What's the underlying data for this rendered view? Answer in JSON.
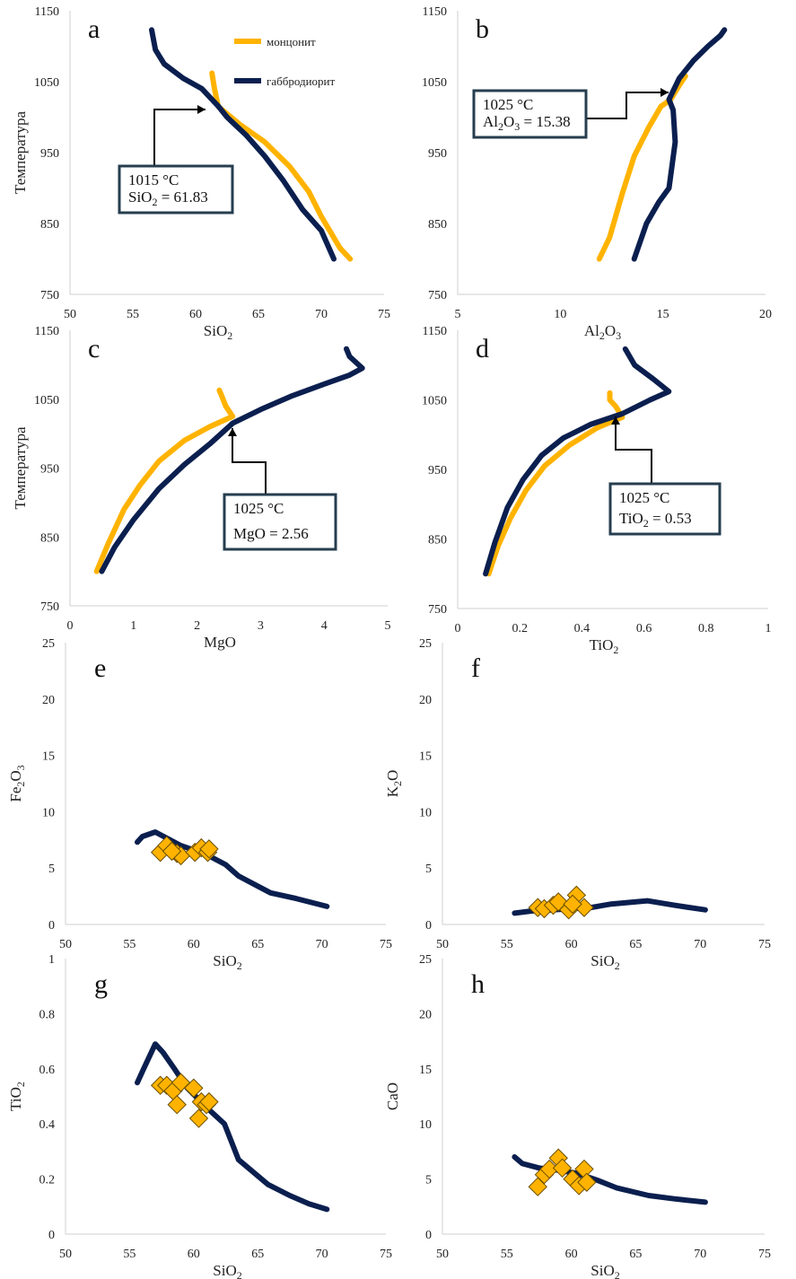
{
  "colors": {
    "monzonite": "#FFB300",
    "gabbrodiorite": "#0B1F4F",
    "marker_edge": "#6B4E00",
    "box_edge": "#263E4F"
  },
  "legend": {
    "monzonite": "монцонит",
    "gabbrodiorite": "габбродиорит"
  },
  "chart_data": [
    {
      "id": "a",
      "type": "line",
      "letter": "a",
      "xlabel": "SiO2",
      "ylabel": "Температура",
      "xlim": [
        50,
        75
      ],
      "ylim": [
        750,
        1150
      ],
      "xticks": [
        50,
        55,
        60,
        65,
        70,
        75
      ],
      "yticks": [
        750,
        850,
        950,
        1050,
        1150
      ],
      "show_legend": true,
      "series": [
        {
          "name": "монцонит",
          "color_key": "monzonite",
          "x": [
            61.3,
            61.5,
            61.8,
            63.5,
            65.5,
            67.5,
            69,
            70,
            71,
            71.5,
            72.3
          ],
          "y": [
            1062,
            1040,
            1015,
            990,
            965,
            930,
            895,
            860,
            830,
            815,
            800
          ]
        },
        {
          "name": "габбродиорит",
          "color_key": "gabbrodiorite",
          "x": [
            56.5,
            56.8,
            57.5,
            59,
            60.5,
            61.83,
            62.5,
            64,
            65.5,
            67,
            68.5,
            70,
            71
          ],
          "y": [
            1123,
            1095,
            1075,
            1055,
            1040,
            1015,
            1000,
            975,
            945,
            910,
            870,
            840,
            800
          ]
        }
      ],
      "annotation": {
        "line1": "1015 °C",
        "line2_label": "SiO",
        "line2_sub": "2",
        "line2_value": " = 61.83",
        "target": [
          61.83,
          1015
        ]
      }
    },
    {
      "id": "b",
      "type": "line",
      "letter": "b",
      "xlabel": "Al2O3",
      "ylabel": "",
      "xlim": [
        5,
        20
      ],
      "ylim": [
        750,
        1150
      ],
      "xticks": [
        5,
        10,
        15,
        20
      ],
      "yticks": [
        750,
        850,
        950,
        1050,
        1150
      ],
      "show_legend": false,
      "series": [
        {
          "name": "монцонит",
          "color_key": "monzonite",
          "x": [
            11.9,
            12.4,
            13,
            13.6,
            14.3,
            14.9,
            15.38,
            15.8,
            16.1
          ],
          "y": [
            800,
            830,
            890,
            945,
            985,
            1015,
            1025,
            1045,
            1058
          ]
        },
        {
          "name": "габбродиорит",
          "color_key": "gabbrodiorite",
          "x": [
            13.6,
            14.2,
            14.8,
            15.3,
            15.6,
            15.5,
            15.3,
            15.8,
            16.5,
            17.2,
            17.8,
            18
          ],
          "y": [
            800,
            850,
            880,
            900,
            965,
            1010,
            1025,
            1055,
            1080,
            1100,
            1115,
            1123
          ]
        }
      ],
      "annotation": {
        "line1": "1025 °C",
        "line2_label": "Al",
        "line2_sub": "2",
        "line2_label_b": "O",
        "line2_sub_b": "3",
        "line2_value": " = 15.38",
        "target": [
          15.38,
          1025
        ]
      }
    },
    {
      "id": "c",
      "type": "line",
      "letter": "c",
      "xlabel": "MgO",
      "ylabel": "Температура",
      "xlim": [
        0,
        5
      ],
      "ylim": [
        750,
        1150
      ],
      "xticks": [
        0,
        1,
        2,
        3,
        4,
        5
      ],
      "yticks": [
        750,
        850,
        950,
        1050,
        1150
      ],
      "show_legend": false,
      "series": [
        {
          "name": "монцонит",
          "color_key": "monzonite",
          "x": [
            0.42,
            0.6,
            0.85,
            1.1,
            1.4,
            1.8,
            2.2,
            2.56,
            2.45,
            2.4,
            2.35
          ],
          "y": [
            800,
            840,
            890,
            925,
            960,
            990,
            1010,
            1025,
            1040,
            1052,
            1063
          ]
        },
        {
          "name": "габбродиорит",
          "color_key": "gabbrodiorite",
          "x": [
            0.5,
            0.7,
            1.0,
            1.4,
            1.8,
            2.2,
            2.56,
            3.0,
            3.5,
            4.0,
            4.4,
            4.6,
            4.4,
            4.35
          ],
          "y": [
            800,
            835,
            875,
            920,
            955,
            985,
            1015,
            1035,
            1055,
            1072,
            1085,
            1095,
            1112,
            1123
          ]
        }
      ],
      "annotation": {
        "line1": "1025 °C",
        "line2_label": "MgO",
        "line2_value": " = 2.56",
        "target": [
          2.56,
          1025
        ]
      }
    },
    {
      "id": "d",
      "type": "line",
      "letter": "d",
      "xlabel": "TiO2",
      "ylabel": "",
      "xlim": [
        0,
        1
      ],
      "ylim": [
        750,
        1150
      ],
      "xticks": [
        0,
        0.2,
        0.4,
        0.6,
        0.8,
        1
      ],
      "yticks": [
        750,
        850,
        950,
        1050,
        1150
      ],
      "show_legend": false,
      "series": [
        {
          "name": "монцонит",
          "color_key": "monzonite",
          "x": [
            0.1,
            0.13,
            0.17,
            0.22,
            0.28,
            0.36,
            0.45,
            0.53,
            0.51,
            0.49,
            0.49
          ],
          "y": [
            800,
            840,
            880,
            920,
            955,
            985,
            1010,
            1025,
            1040,
            1050,
            1060
          ]
        },
        {
          "name": "габбродиорит",
          "color_key": "gabbrodiorite",
          "x": [
            0.09,
            0.12,
            0.16,
            0.21,
            0.27,
            0.34,
            0.43,
            0.53,
            0.62,
            0.68,
            0.63,
            0.57,
            0.54
          ],
          "y": [
            800,
            845,
            895,
            935,
            970,
            995,
            1015,
            1030,
            1050,
            1062,
            1080,
            1100,
            1123
          ]
        }
      ],
      "annotation": {
        "line1": "1025 °C",
        "line2_label": "TiO",
        "line2_sub": "2",
        "line2_value": " = 0.53",
        "target": [
          0.53,
          1025
        ]
      }
    },
    {
      "id": "e",
      "type": "scatter",
      "letter": "e",
      "xlabel": "SiO2",
      "ylabel": "Fe2O3",
      "xlim": [
        50,
        75
      ],
      "ylim": [
        0,
        25
      ],
      "xticks": [
        50,
        55,
        60,
        65,
        70,
        75
      ],
      "yticks": [
        0,
        5,
        10,
        15,
        20,
        25
      ],
      "show_legend": false,
      "series": [
        {
          "name": "габбродиорит",
          "color_key": "gabbrodiorite",
          "kind": "line",
          "x": [
            55.6,
            56,
            57,
            58,
            59,
            60,
            61,
            62.5,
            63.5,
            65,
            66,
            68,
            70.4
          ],
          "y": [
            7.3,
            7.8,
            8.2,
            7.6,
            7.0,
            6.6,
            6.2,
            5.3,
            4.3,
            3.4,
            2.8,
            2.3,
            1.6
          ]
        },
        {
          "name": "монцонит",
          "color_key": "monzonite",
          "kind": "points",
          "x": [
            57.4,
            57.9,
            58.7,
            59.0,
            60.1,
            60.6,
            61.1,
            61.2,
            58.3
          ],
          "y": [
            6.4,
            7.0,
            6.3,
            6.1,
            6.4,
            6.8,
            6.4,
            6.7,
            6.5
          ]
        }
      ]
    },
    {
      "id": "f",
      "type": "scatter",
      "letter": "f",
      "xlabel": "SiO2",
      "ylabel": "K2O",
      "xlim": [
        50,
        75
      ],
      "ylim": [
        0,
        25
      ],
      "xticks": [
        50,
        55,
        60,
        65,
        70,
        75
      ],
      "yticks": [
        0,
        5,
        10,
        15,
        20,
        25
      ],
      "show_legend": false,
      "series": [
        {
          "name": "габбродиорит",
          "color_key": "gabbrodiorite",
          "kind": "line",
          "x": [
            55.6,
            57,
            58.5,
            60,
            61.5,
            63,
            65.9,
            68,
            70.4
          ],
          "y": [
            1.0,
            1.2,
            1.3,
            1.4,
            1.5,
            1.8,
            2.1,
            1.7,
            1.3
          ]
        },
        {
          "name": "монцонит",
          "color_key": "monzonite",
          "kind": "points",
          "x": [
            57.4,
            57.9,
            58.6,
            59.0,
            59.8,
            60.4,
            61.0,
            60.1
          ],
          "y": [
            1.5,
            1.4,
            1.7,
            2.0,
            1.3,
            2.6,
            1.5,
            1.8
          ]
        }
      ]
    },
    {
      "id": "g",
      "type": "scatter",
      "letter": "g",
      "xlabel": "SiO2",
      "ylabel": "TiO2",
      "xlim": [
        50,
        75
      ],
      "ylim": [
        0,
        1
      ],
      "xticks": [
        50,
        55,
        60,
        65,
        70,
        75
      ],
      "yticks": [
        0,
        0.2,
        0.4,
        0.6,
        0.8,
        1
      ],
      "show_legend": false,
      "series": [
        {
          "name": "габбродиорит",
          "color_key": "gabbrodiorite",
          "kind": "line",
          "x": [
            55.6,
            56.1,
            57,
            57.6,
            58.5,
            59.5,
            61,
            62.4,
            63.5,
            65.8,
            67.5,
            69,
            70.4
          ],
          "y": [
            0.55,
            0.6,
            0.69,
            0.66,
            0.6,
            0.53,
            0.46,
            0.4,
            0.27,
            0.18,
            0.14,
            0.11,
            0.09
          ]
        },
        {
          "name": "монцонит",
          "color_key": "monzonite",
          "kind": "points",
          "x": [
            57.4,
            57.9,
            58.4,
            58.7,
            59.0,
            60.0,
            60.6,
            60.4,
            61.0,
            61.2
          ],
          "y": [
            0.54,
            0.54,
            0.52,
            0.47,
            0.55,
            0.53,
            0.48,
            0.42,
            0.47,
            0.48
          ]
        }
      ]
    },
    {
      "id": "h",
      "type": "scatter",
      "letter": "h",
      "xlabel": "SiO2",
      "ylabel": "CaO",
      "xlim": [
        50,
        75
      ],
      "ylim": [
        0,
        25
      ],
      "xticks": [
        50,
        55,
        60,
        65,
        70,
        75
      ],
      "yticks": [
        0,
        5,
        10,
        15,
        20,
        25
      ],
      "show_legend": false,
      "series": [
        {
          "name": "габбродиорит",
          "color_key": "gabbrodiorite",
          "kind": "line",
          "x": [
            55.6,
            56.2,
            57.5,
            59,
            60.5,
            62,
            63.5,
            66,
            68,
            70.4
          ],
          "y": [
            7.0,
            6.4,
            6.0,
            5.8,
            5.5,
            4.9,
            4.2,
            3.5,
            3.2,
            2.9
          ]
        },
        {
          "name": "монцонит",
          "color_key": "monzonite",
          "kind": "points",
          "x": [
            57.4,
            57.9,
            58.3,
            59.0,
            59.3,
            60.1,
            60.6,
            61.0,
            61.2
          ],
          "y": [
            4.3,
            5.4,
            5.9,
            6.9,
            6.0,
            5.0,
            4.4,
            5.9,
            4.7
          ]
        }
      ]
    }
  ]
}
